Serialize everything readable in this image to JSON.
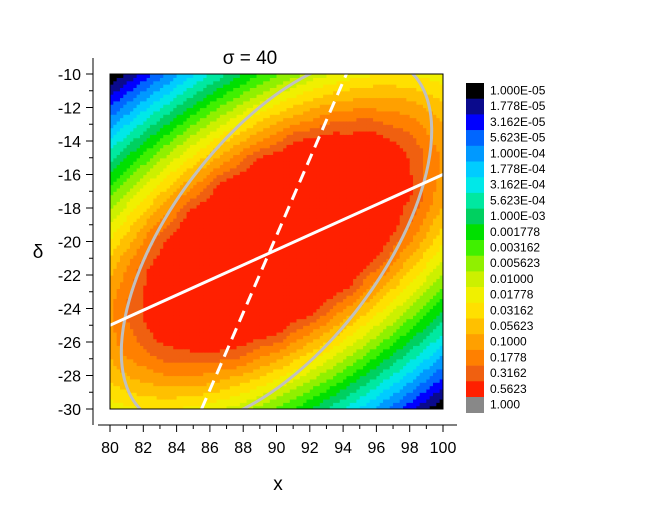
{
  "chart_data": {
    "type": "heatmap",
    "subtype": "filled-contour",
    "title": "σ = 40",
    "xlabel": "x",
    "ylabel": "δ",
    "xlim": [
      80,
      100
    ],
    "ylim": [
      -30,
      -10
    ],
    "x_ticks": [
      80,
      82,
      84,
      86,
      88,
      90,
      92,
      94,
      96,
      98,
      100
    ],
    "x_tick_labels": [
      "80",
      "82",
      "84",
      "86",
      "88",
      "90",
      "92",
      "94",
      "96",
      "98",
      "100"
    ],
    "y_ticks": [
      -10,
      -12,
      -14,
      -16,
      -18,
      -20,
      -22,
      -24,
      -26,
      -28,
      -30
    ],
    "y_tick_labels": [
      "-10",
      "-12",
      "-14",
      "-16",
      "-18",
      "-20",
      "-22",
      "-24",
      "-26",
      "-28",
      "-30"
    ],
    "legend_placement": "right",
    "levels": [
      {
        "label": "1.000E-05",
        "color": "#000000"
      },
      {
        "label": "1.778E-05",
        "color": "#0a0a8c"
      },
      {
        "label": "3.162E-05",
        "color": "#0000ff"
      },
      {
        "label": "5.623E-05",
        "color": "#0066ff"
      },
      {
        "label": "1.000E-04",
        "color": "#0099ff"
      },
      {
        "label": "1.778E-04",
        "color": "#00ccff"
      },
      {
        "label": "3.162E-04",
        "color": "#00e8e8"
      },
      {
        "label": "5.623E-04",
        "color": "#00e8a0"
      },
      {
        "label": "1.000E-03",
        "color": "#00d060"
      },
      {
        "label": "0.001778",
        "color": "#00e000"
      },
      {
        "label": "0.003162",
        "color": "#40f000"
      },
      {
        "label": "0.005623",
        "color": "#90f000"
      },
      {
        "label": "0.01000",
        "color": "#ccf000"
      },
      {
        "label": "0.01778",
        "color": "#f0f000"
      },
      {
        "label": "0.03162",
        "color": "#ffe000"
      },
      {
        "label": "0.05623",
        "color": "#ffc000"
      },
      {
        "label": "0.1000",
        "color": "#ffa000"
      },
      {
        "label": "0.1778",
        "color": "#ff8000"
      },
      {
        "label": "0.3162",
        "color": "#f06010"
      },
      {
        "label": "0.5623",
        "color": "#ff2000"
      },
      {
        "label": "1.000",
        "color": "#888888"
      }
    ],
    "ellipse_center": [
      90,
      -20
    ],
    "solid_line": {
      "points": [
        [
          80,
          -25
        ],
        [
          100,
          -16
        ]
      ],
      "color": "#ffffff",
      "style": "solid"
    },
    "dashed_line": {
      "points": [
        [
          85.5,
          -30
        ],
        [
          94.2,
          -10
        ]
      ],
      "color": "#ffffff",
      "style": "dashed"
    },
    "outer_ellipse_color": "#c0c0c0",
    "grid": false
  }
}
